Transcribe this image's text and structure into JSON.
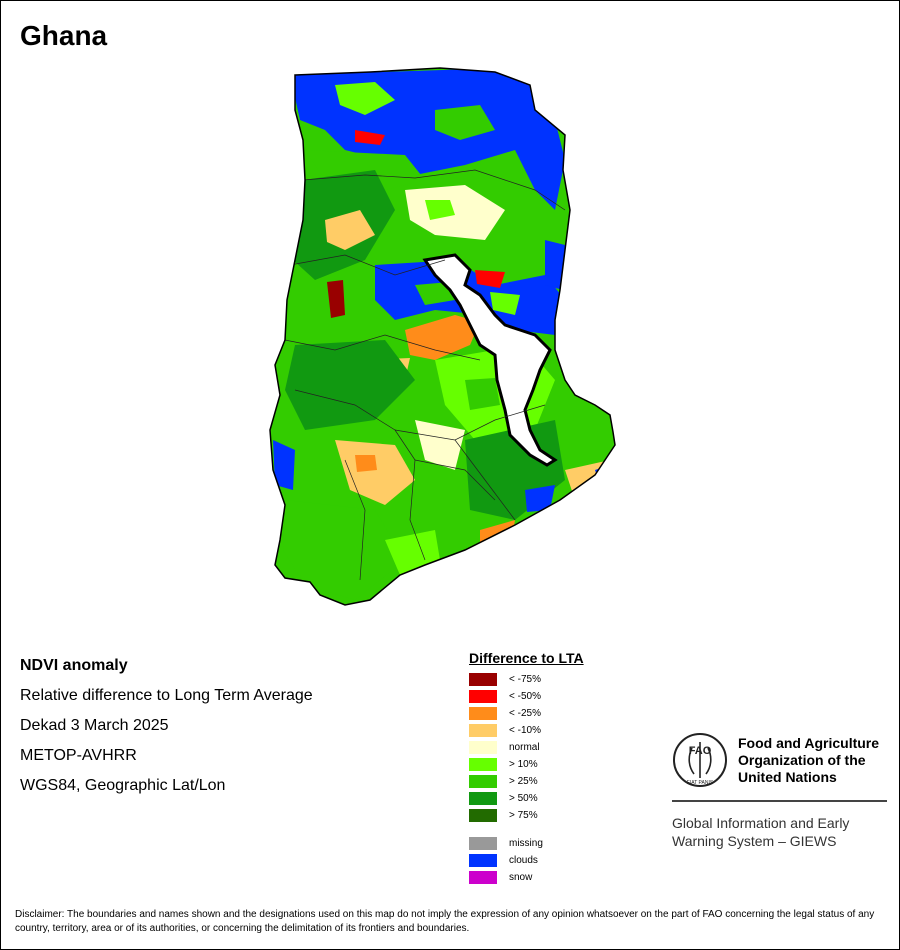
{
  "title": "Ghana",
  "info": {
    "line1": "NDVI anomaly",
    "line2": "Relative difference to Long Term Average",
    "line3": "Dekad 3 March 2025",
    "line4": "METOP-AVHRR",
    "line5": "WGS84, Geographic Lat/Lon"
  },
  "legend": {
    "title": "Difference to LTA",
    "classes": [
      {
        "label": "< -75%",
        "color": "#990000"
      },
      {
        "label": "< -50%",
        "color": "#ff0000"
      },
      {
        "label": "< -25%",
        "color": "#ff8c1a"
      },
      {
        "label": "< -10%",
        "color": "#ffcc66"
      },
      {
        "label": "normal",
        "color": "#ffffcc"
      },
      {
        "label": "> 10%",
        "color": "#66ff00"
      },
      {
        "label": "> 25%",
        "color": "#33cc00"
      },
      {
        "label": "> 50%",
        "color": "#119911"
      },
      {
        "label": "> 75%",
        "color": "#226b00"
      }
    ],
    "other": [
      {
        "label": "missing",
        "color": "#999999"
      },
      {
        "label": "clouds",
        "color": "#0033ff"
      },
      {
        "label": "snow",
        "color": "#cc00cc"
      }
    ]
  },
  "fao": {
    "name_line1": "Food and Agriculture",
    "name_line2": "Organization of the",
    "name_line3": "United Nations",
    "logo_text": "FAO",
    "logo_motto": "FIAT PANIS",
    "giews_line1": "Global Information and Early",
    "giews_line2": "Warning System – GIEWS"
  },
  "disclaimer": "Disclaimer: The boundaries and names shown and the designations used on this map do not imply the expression of any opinion whatsoever on the part of FAO concerning the legal status of any country, territory, area or of its authorities, or concerning the delimitation of its frontiers and boundaries."
}
